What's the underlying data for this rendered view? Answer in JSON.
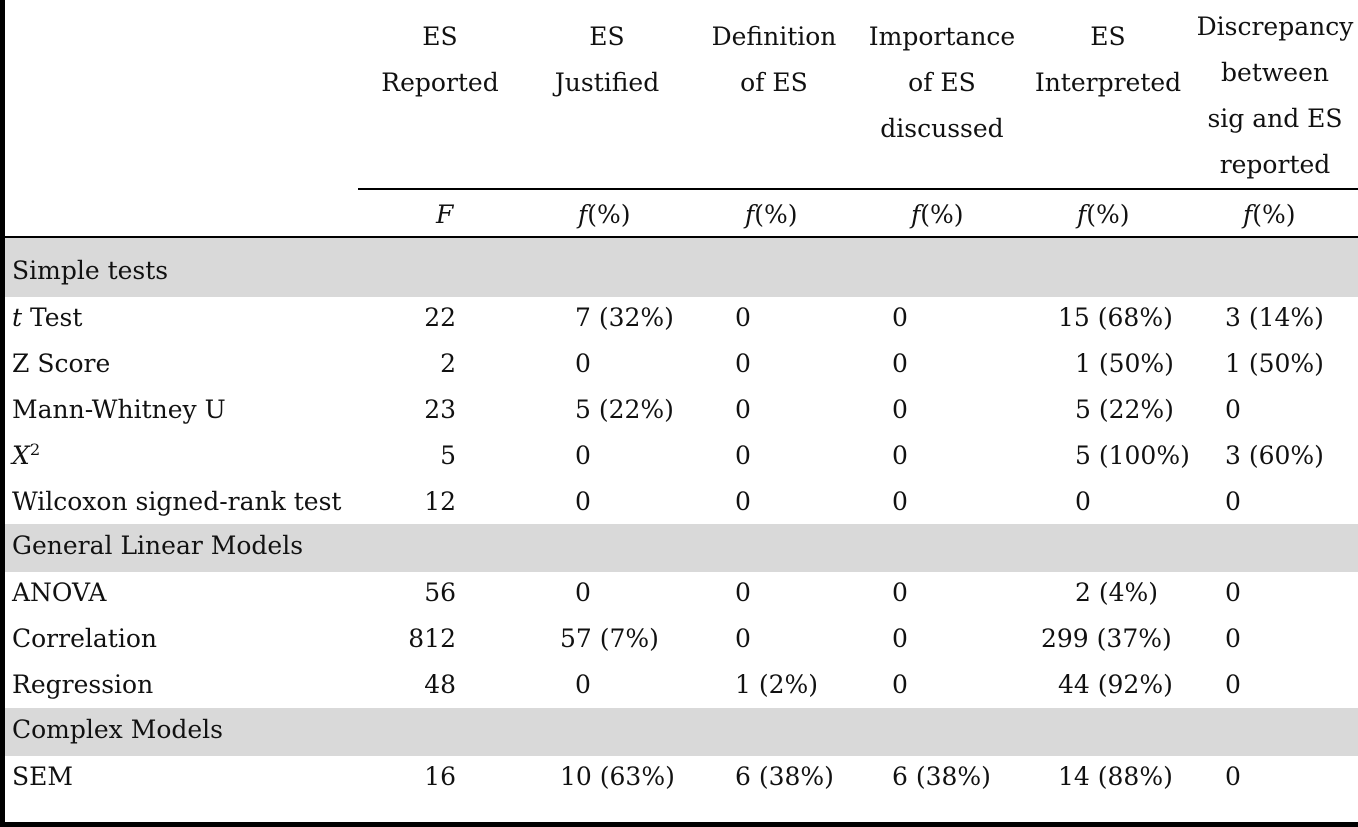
{
  "headers": {
    "col1": [
      "ES",
      "Reported"
    ],
    "col2": [
      "ES",
      "Justified"
    ],
    "col3": [
      "Definition",
      "of ES"
    ],
    "col4": [
      "Importance",
      "of ES",
      "discussed"
    ],
    "col5": [
      "ES",
      "Interpreted"
    ],
    "col6": [
      "Discrepancy",
      "between",
      "sig and ES",
      "reported"
    ]
  },
  "subheaders": {
    "col1": "F",
    "col2": "f",
    "col3": "f",
    "col4": "f",
    "col5": "f",
    "col6": "f",
    "pct": "(%)"
  },
  "sections": {
    "simple": "Simple tests",
    "glm": "General Linear Models",
    "complex": "Complex Models"
  },
  "rows": {
    "ttest": {
      "label_i": "t",
      "label": " Test",
      "c1": "22",
      "c2": "7 (32%)",
      "c3": "0",
      "c4": "0",
      "c5": "15 (68%)",
      "c6": "3 (14%)"
    },
    "zscore": {
      "label": "Z Score",
      "c1": "2",
      "c2": "0",
      "c3": "0",
      "c4": "0",
      "c5": "1 (50%)",
      "c6": "1 (50%)"
    },
    "mann": {
      "label": "Mann-Whitney U",
      "c1": "23",
      "c2": "5 (22%)",
      "c3": "0",
      "c4": "0",
      "c5": "5 (22%)",
      "c6": "0"
    },
    "chi": {
      "label_i": "X",
      "label_sup": "2",
      "c1": "5",
      "c2": "0",
      "c3": "0",
      "c4": "0",
      "c5": "5 (100%)",
      "c6": "3 (60%)"
    },
    "wilcoxon": {
      "label": "Wilcoxon signed-rank test",
      "c1": "12",
      "c2": "0",
      "c3": "0",
      "c4": "0",
      "c5": "0",
      "c6": "0"
    },
    "anova": {
      "label": "ANOVA",
      "c1": "56",
      "c2": "0",
      "c3": "0",
      "c4": "0",
      "c5": "2 (4%)",
      "c6": "0"
    },
    "correlation": {
      "label": "Correlation",
      "c1": "812",
      "c2": "57 (7%)",
      "c3": "0",
      "c4": "0",
      "c5": "299 (37%)",
      "c6": "0"
    },
    "regression": {
      "label": "Regression",
      "c1": "48",
      "c2": "0",
      "c3": "1 (2%)",
      "c4": "0",
      "c5": "44 (92%)",
      "c6": "0"
    },
    "sem": {
      "label": "SEM",
      "c1": "16",
      "c2": "10 (63%)",
      "c3": "6 (38%)",
      "c4": "6 (38%)",
      "c5": "14 (88%)",
      "c6": "0"
    }
  }
}
